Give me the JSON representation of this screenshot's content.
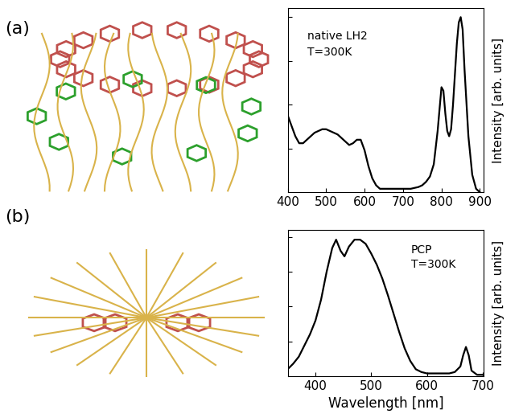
{
  "chart_data": [
    {
      "type": "line",
      "panel_label": "(a)",
      "annotations": [
        "native LH2",
        "T=300K"
      ],
      "y_label": "Intensity [arb. units]",
      "x": [
        400,
        410,
        420,
        430,
        440,
        450,
        460,
        470,
        480,
        490,
        500,
        510,
        520,
        530,
        540,
        550,
        560,
        570,
        580,
        590,
        600,
        610,
        620,
        630,
        640,
        660,
        680,
        700,
        720,
        740,
        750,
        760,
        770,
        780,
        790,
        800,
        805,
        810,
        815,
        820,
        825,
        830,
        840,
        845,
        850,
        855,
        860,
        870,
        880,
        890,
        900
      ],
      "series": [
        {
          "name": "native LH2",
          "color": "#000000",
          "values": [
            0.44,
            0.38,
            0.32,
            0.28,
            0.28,
            0.3,
            0.32,
            0.34,
            0.35,
            0.36,
            0.36,
            0.35,
            0.34,
            0.33,
            0.31,
            0.29,
            0.27,
            0.28,
            0.3,
            0.3,
            0.24,
            0.15,
            0.08,
            0.04,
            0.02,
            0.02,
            0.02,
            0.02,
            0.02,
            0.03,
            0.04,
            0.06,
            0.09,
            0.16,
            0.35,
            0.6,
            0.58,
            0.45,
            0.35,
            0.32,
            0.36,
            0.5,
            0.85,
            0.97,
            1.0,
            0.93,
            0.7,
            0.32,
            0.1,
            0.02,
            0.0
          ]
        }
      ],
      "xlim": [
        400,
        910
      ],
      "xticks": [
        400,
        500,
        600,
        700,
        800,
        900
      ],
      "ylim": [
        0,
        1.05
      ],
      "yticks": [
        0.25,
        0.5,
        0.75,
        1.0
      ],
      "tick_labels": "x"
    },
    {
      "type": "line",
      "panel_label": "(b)",
      "annotations": [
        "PCP",
        "T=300K"
      ],
      "x_label": "Wavelength [nm]",
      "y_label": "Intensity [arb. units]",
      "x": [
        350,
        360,
        370,
        380,
        390,
        400,
        410,
        420,
        430,
        437,
        445,
        452,
        460,
        470,
        480,
        490,
        500,
        510,
        520,
        530,
        540,
        550,
        560,
        570,
        580,
        590,
        600,
        620,
        640,
        650,
        660,
        665,
        670,
        675,
        680,
        690,
        700
      ],
      "series": [
        {
          "name": "PCP",
          "color": "#000000",
          "values": [
            0.05,
            0.09,
            0.14,
            0.22,
            0.3,
            0.4,
            0.55,
            0.75,
            0.92,
            0.98,
            0.9,
            0.86,
            0.93,
            0.98,
            0.98,
            0.95,
            0.88,
            0.8,
            0.7,
            0.58,
            0.45,
            0.32,
            0.2,
            0.11,
            0.05,
            0.03,
            0.02,
            0.02,
            0.02,
            0.03,
            0.07,
            0.15,
            0.21,
            0.15,
            0.04,
            0.01,
            0.01
          ]
        }
      ],
      "xlim": [
        350,
        702
      ],
      "xticks": [
        400,
        500,
        600,
        700
      ],
      "ylim": [
        0,
        1.05
      ],
      "yticks": [
        0.25,
        0.5,
        0.75,
        1.0
      ],
      "tick_labels": "x"
    }
  ]
}
